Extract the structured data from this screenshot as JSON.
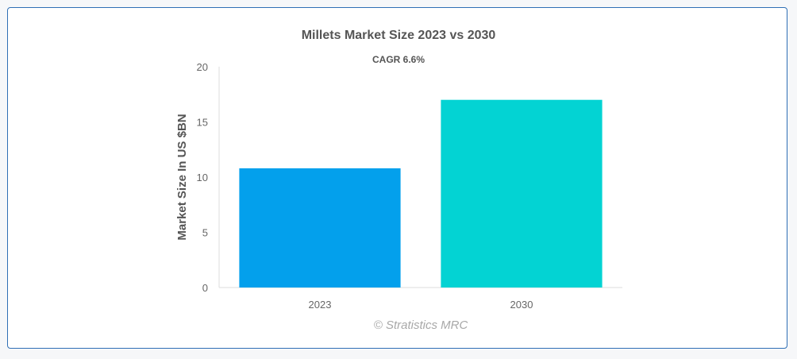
{
  "chart_data": {
    "type": "bar",
    "title": "Millets Market Size 2023 vs 2030",
    "subtitle": "CAGR 6.6%",
    "ylabel": "Market Size In US $BN",
    "xlabel": "",
    "categories": [
      "2023",
      "2030"
    ],
    "values": [
      10.8,
      17.0
    ],
    "colors": [
      "#03a0ec",
      "#03d3d3"
    ],
    "ylim": [
      0,
      20
    ],
    "yticks": [
      "0",
      "5",
      "10",
      "15",
      "20"
    ],
    "grid": false,
    "legend": "none"
  },
  "credit": "© Stratistics MRC"
}
